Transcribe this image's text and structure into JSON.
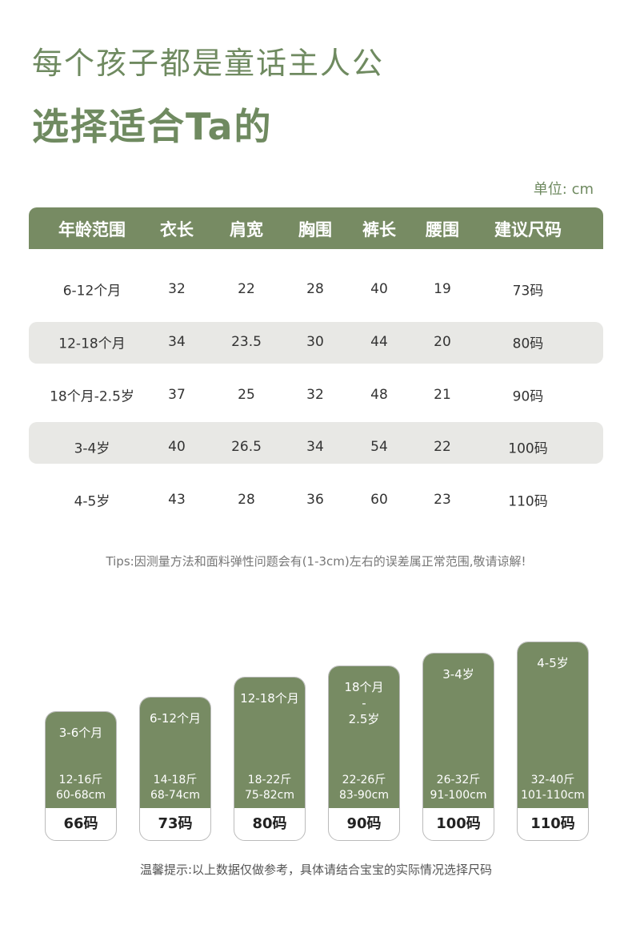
{
  "header": {
    "title": "每个孩子都是童话主人公",
    "subtitle": "选择适合Ta的",
    "unit": "单位: cm"
  },
  "table": {
    "columns": [
      "年龄范围",
      "衣长",
      "肩宽",
      "胸围",
      "裤长",
      "腰围",
      "建议尺码"
    ],
    "rows": [
      [
        "6-12个月",
        "32",
        "22",
        "28",
        "40",
        "19",
        "73码"
      ],
      [
        "12-18个月",
        "34",
        "23.5",
        "30",
        "44",
        "20",
        "80码"
      ],
      [
        "18个月-2.5岁",
        "37",
        "25",
        "32",
        "48",
        "21",
        "90码"
      ],
      [
        "3-4岁",
        "40",
        "26.5",
        "34",
        "54",
        "22",
        "100码"
      ],
      [
        "4-5岁",
        "43",
        "28",
        "36",
        "60",
        "23",
        "110码"
      ]
    ]
  },
  "tips": "Tips:因测量方法和面料弹性问题会有(1-3cm)左右的误差属正常范围,敬请谅解!",
  "cards": [
    {
      "age": [
        "3-6个月"
      ],
      "weight": "12-16斤",
      "height": "60-68cm",
      "size": "66码"
    },
    {
      "age": [
        "6-12个月"
      ],
      "weight": "14-18斤",
      "height": "68-74cm",
      "size": "73码"
    },
    {
      "age": [
        "12-18个月"
      ],
      "weight": "18-22斤",
      "height": "75-82cm",
      "size": "80码"
    },
    {
      "age": [
        "18个月",
        "-",
        "2.5岁"
      ],
      "weight": "22-26斤",
      "height": "83-90cm",
      "size": "90码"
    },
    {
      "age": [
        "3-4岁"
      ],
      "weight": "26-32斤",
      "height": "91-100cm",
      "size": "100码"
    },
    {
      "age": [
        "4-5岁"
      ],
      "weight": "32-40斤",
      "height": "101-110cm",
      "size": "110码"
    }
  ],
  "footer": "温馨提示:以上数据仅做参考，具体请结合宝宝的实际情况选择尺码"
}
